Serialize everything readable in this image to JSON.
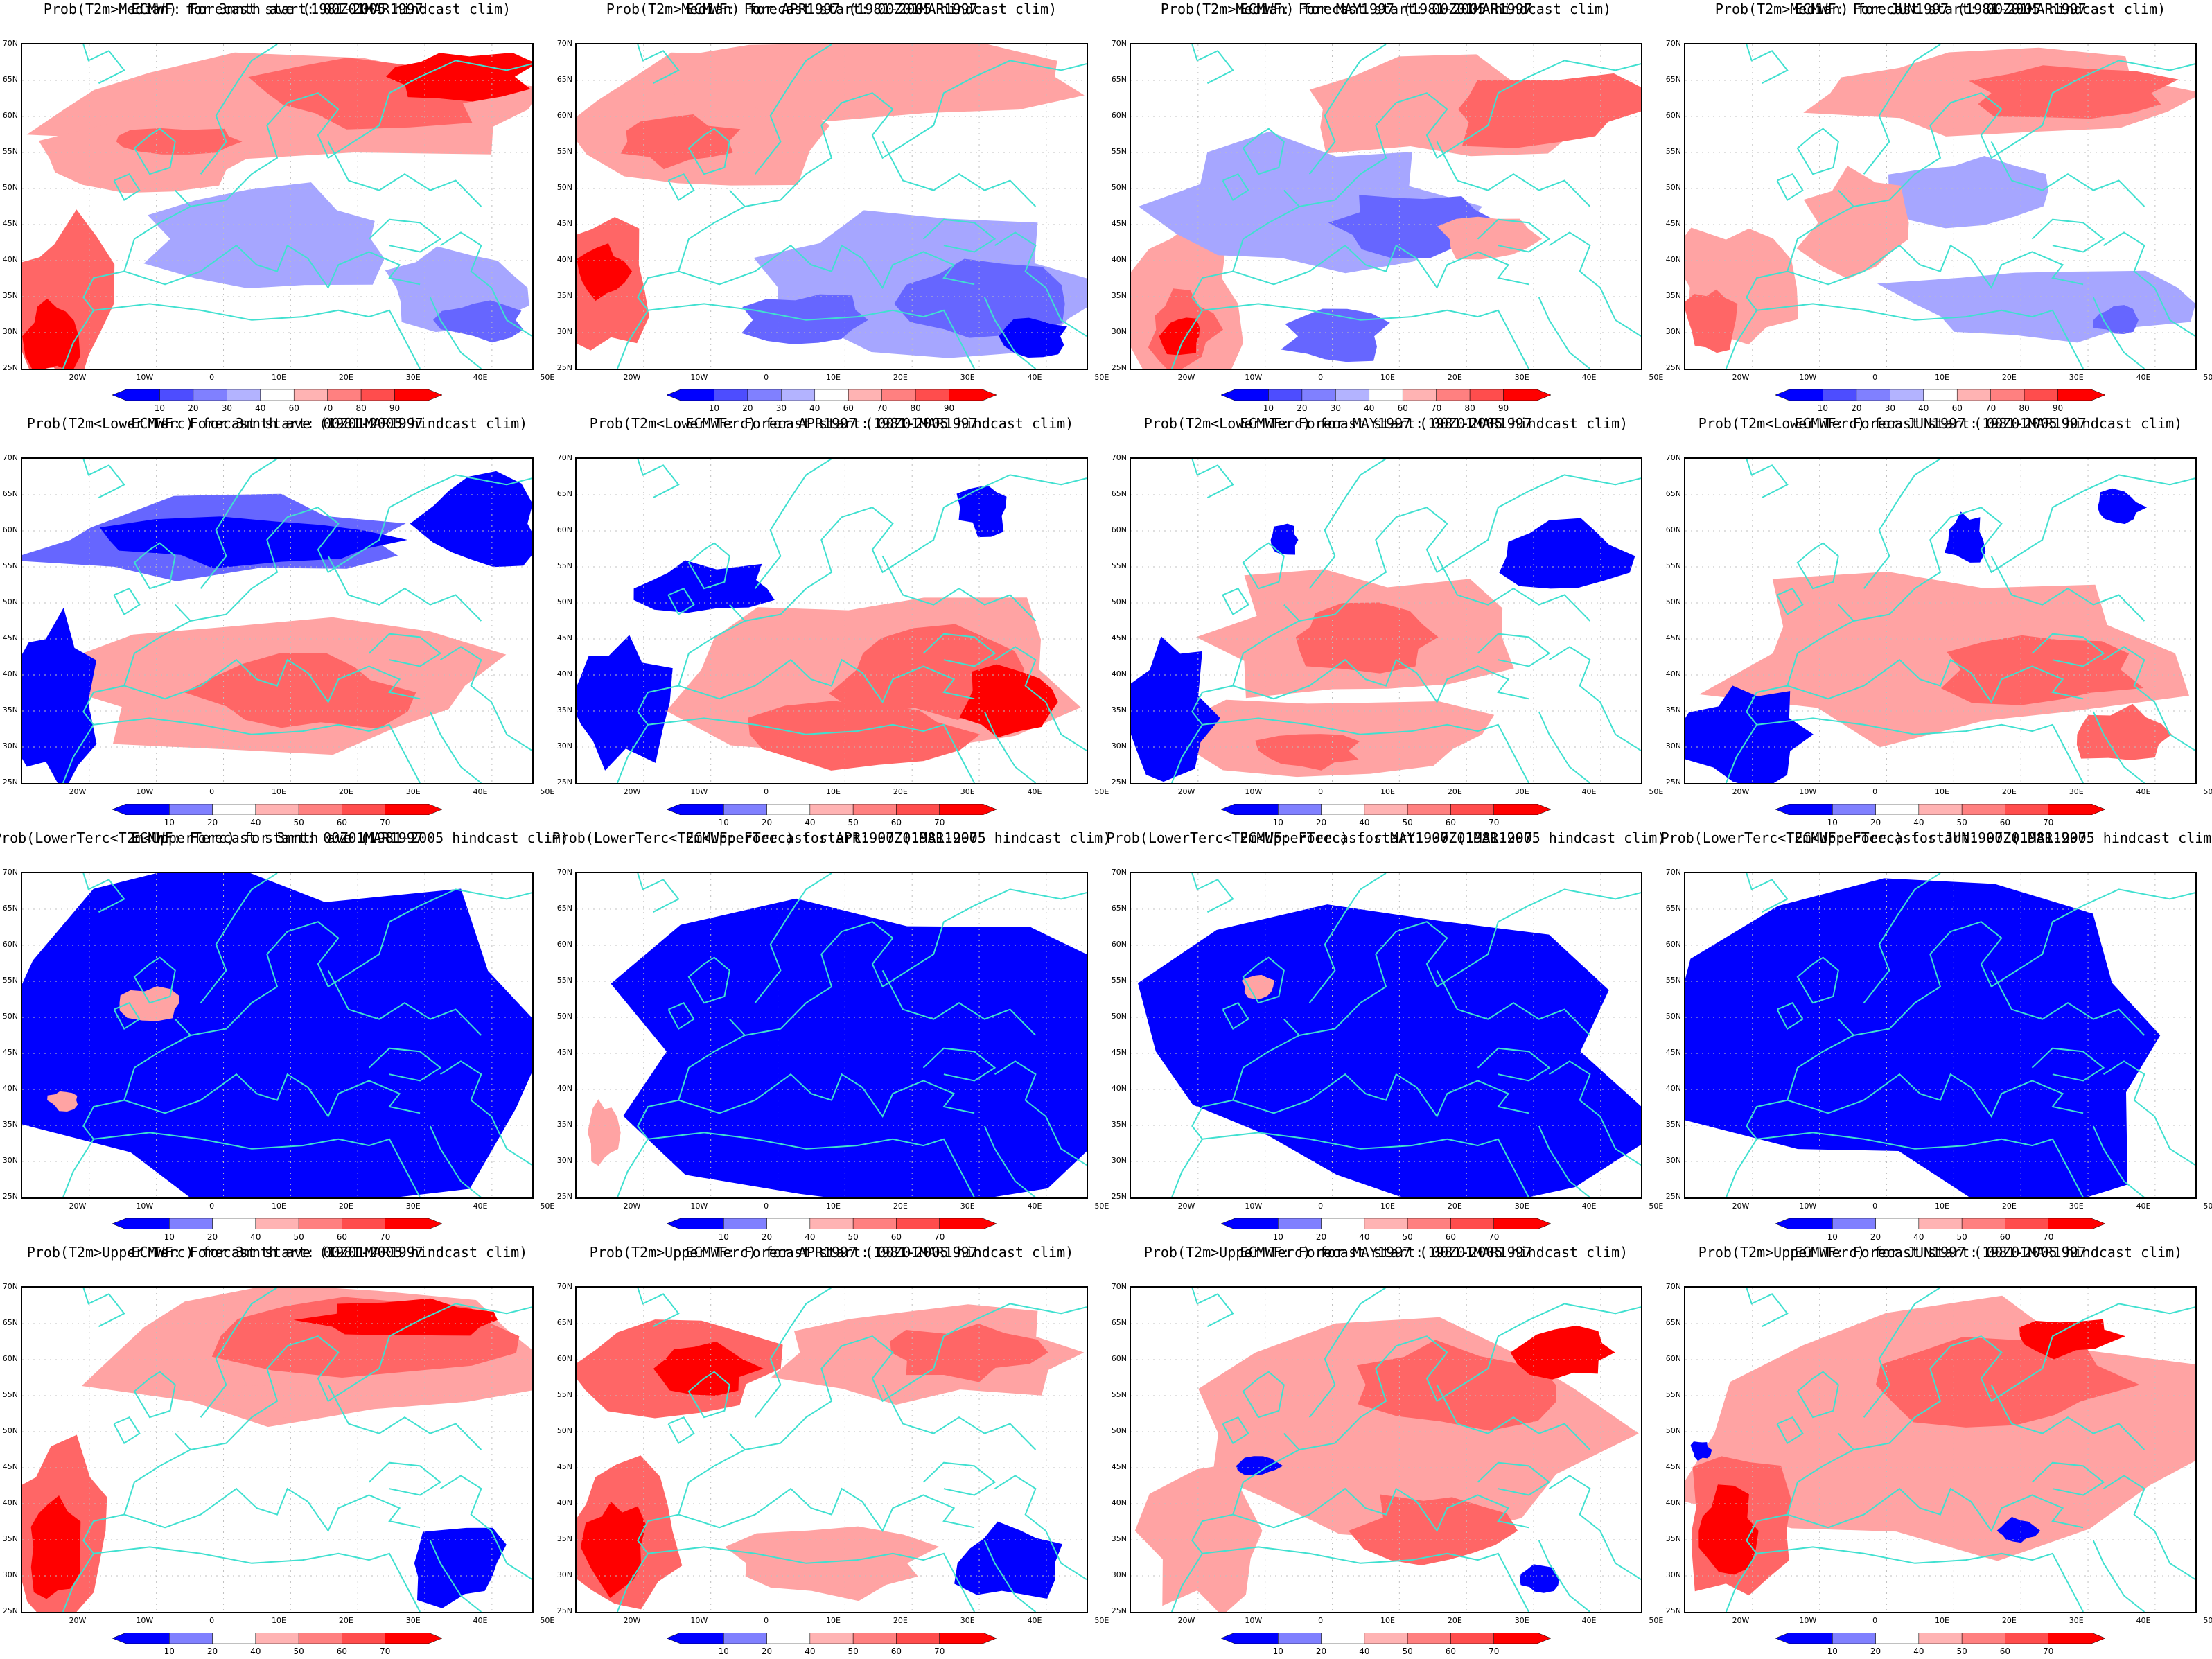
{
  "region": {
    "lat_ticks": [
      "70N",
      "65N",
      "60N",
      "55N",
      "50N",
      "45N",
      "40N",
      "35N",
      "30N",
      "25N"
    ],
    "lon_ticks": [
      "20W",
      "10W",
      "0",
      "10E",
      "20E",
      "30E",
      "40E",
      "50E"
    ]
  },
  "colors": {
    "blue_dark": "#0000ff",
    "blue_mid": "#6666ff",
    "blue_light": "#a6a6ff",
    "red_light": "#ffa3a3",
    "red_mid": "#ff6666",
    "red_dark": "#ff0000",
    "coast": "#40e0d0",
    "grid": "#bfbfbf"
  },
  "colorbars": {
    "median": [
      "10",
      "20",
      "30",
      "40",
      "60",
      "70",
      "80",
      "90"
    ],
    "tercile": [
      "10",
      "20",
      "40",
      "50",
      "60",
      "70"
    ]
  },
  "rows": [
    {
      "key": "median",
      "panels": [
        {
          "title1": "Prob(T2m>Median) for 3mnth ave (1981-2005 hindcast clim)",
          "title2": "ECMWF: Forecast start: 00Z01MAR1997",
          "pattern": "median_ave"
        },
        {
          "title1": "Prob(T2m>Median) for APR1997 (1981-2005 hindcast clim)",
          "title2": "ECMWF: Forecast start: 00Z01MAR1997",
          "pattern": "median_apr"
        },
        {
          "title1": "Prob(T2m>Median) for MAY1997 (1981-2005 hindcast clim)",
          "title2": "ECMWF: Forecast start: 00Z01MAR1997",
          "pattern": "median_may"
        },
        {
          "title1": "Prob(T2m>Median) for JUN1997 (1981-2005 hindcast clim)",
          "title2": "ECMWF: Forecast start: 00Z01MAR1997",
          "pattern": "median_jun"
        }
      ]
    },
    {
      "key": "tercile",
      "panels": [
        {
          "title1": "Prob(T2m<Lower Terc) for 3mnth ave (1981-2005 hindcast clim)",
          "title2": "ECMWF: Forecast start: 00Z01MAR1997",
          "pattern": "lower_ave"
        },
        {
          "title1": "Prob(T2m<Lower Terc) for APR1997 (1981-2005 hindcast clim)",
          "title2": "ECMWF: Forecast start: 00Z01MAR1997",
          "pattern": "lower_apr"
        },
        {
          "title1": "Prob(T2m<Lower Terc) for MAY1997 (1981-2005 hindcast clim)",
          "title2": "ECMWF: Forecast start: 00Z01MAR1997",
          "pattern": "lower_may"
        },
        {
          "title1": "Prob(T2m<Lower Terc) for JUN1997 (1981-2005 hindcast clim)",
          "title2": "ECMWF: Forecast start: 00Z01MAR1997",
          "pattern": "lower_jun"
        }
      ]
    },
    {
      "key": "tercile",
      "panels": [
        {
          "title1": "Prob(LowerTerc<T2m<UpperTerc) for 3mnth ave (1981-2005 hindcast clim)",
          "title2": "ECMWF: Forecast start: 00Z01MAR1997",
          "pattern": "middle_ave"
        },
        {
          "title1": "Prob(LowerTerc<T2m<UpperTerc) for APR1997 (1981-2005 hindcast clim)",
          "title2": "ECMWF: Forecast start: 00Z01MAR1997",
          "pattern": "middle_apr"
        },
        {
          "title1": "Prob(LowerTerc<T2m<UpperTerc) for MAY1997 (1981-2005 hindcast clim)",
          "title2": "ECMWF: Forecast start: 00Z01MAR1997",
          "pattern": "middle_may"
        },
        {
          "title1": "Prob(LowerTerc<T2m<UpperTerc) for JUN1997 (1981-2005 hindcast clim)",
          "title2": "ECMWF: Forecast start: 00Z01MAR1997",
          "pattern": "middle_jun"
        }
      ]
    },
    {
      "key": "tercile",
      "panels": [
        {
          "title1": "Prob(T2m>Upper Terc) for 3mnth ave (1981-2005 hindcast clim)",
          "title2": "ECMWF: Forecast start: 00Z01MAR1997",
          "pattern": "upper_ave"
        },
        {
          "title1": "Prob(T2m>Upper Terc) for APR1997 (1981-2005 hindcast clim)",
          "title2": "ECMWF: Forecast start: 00Z01MAR1997",
          "pattern": "upper_apr"
        },
        {
          "title1": "Prob(T2m>Upper Terc) for MAY1997 (1981-2005 hindcast clim)",
          "title2": "ECMWF: Forecast start: 00Z01MAR1997",
          "pattern": "upper_may"
        },
        {
          "title1": "Prob(T2m>Upper Terc) for JUN1997 (1981-2005 hindcast clim)",
          "title2": "ECMWF: Forecast start: 00Z01MAR1997",
          "pattern": "upper_jun"
        }
      ]
    }
  ]
}
